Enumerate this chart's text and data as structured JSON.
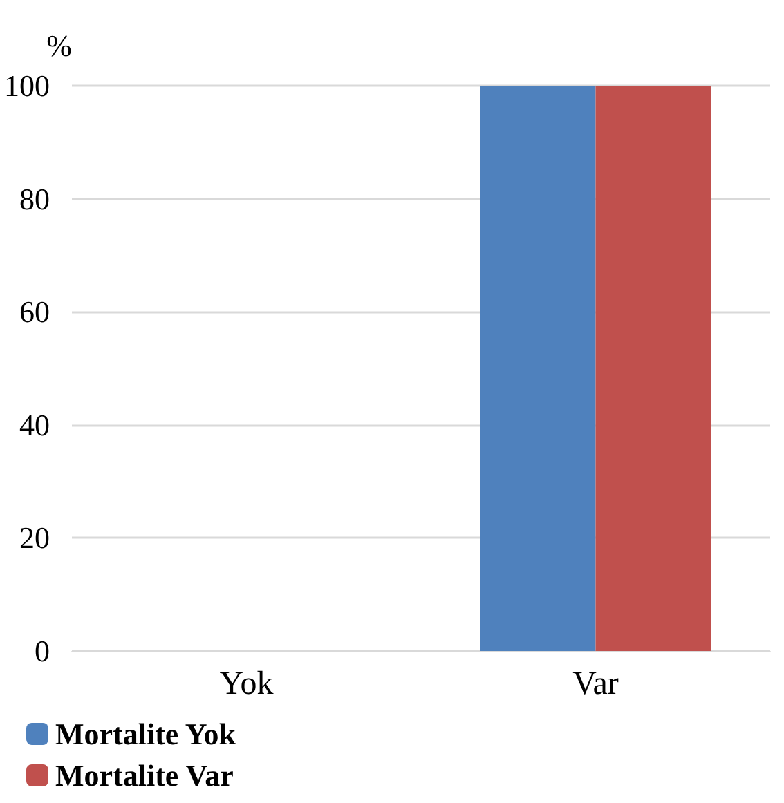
{
  "chart_data": {
    "type": "bar",
    "ylabel": "%",
    "categories": [
      "Yok",
      "Var"
    ],
    "series": [
      {
        "name": "Mortalite Yok",
        "color": "#4f81bd",
        "values": [
          0,
          100
        ]
      },
      {
        "name": "Mortalite Var",
        "color": "#c0504d",
        "values": [
          0,
          100
        ]
      }
    ],
    "ylim": [
      0,
      100
    ],
    "yticks": [
      0,
      20,
      40,
      60,
      80,
      100
    ],
    "grid": "y",
    "legend": "bottom left"
  }
}
